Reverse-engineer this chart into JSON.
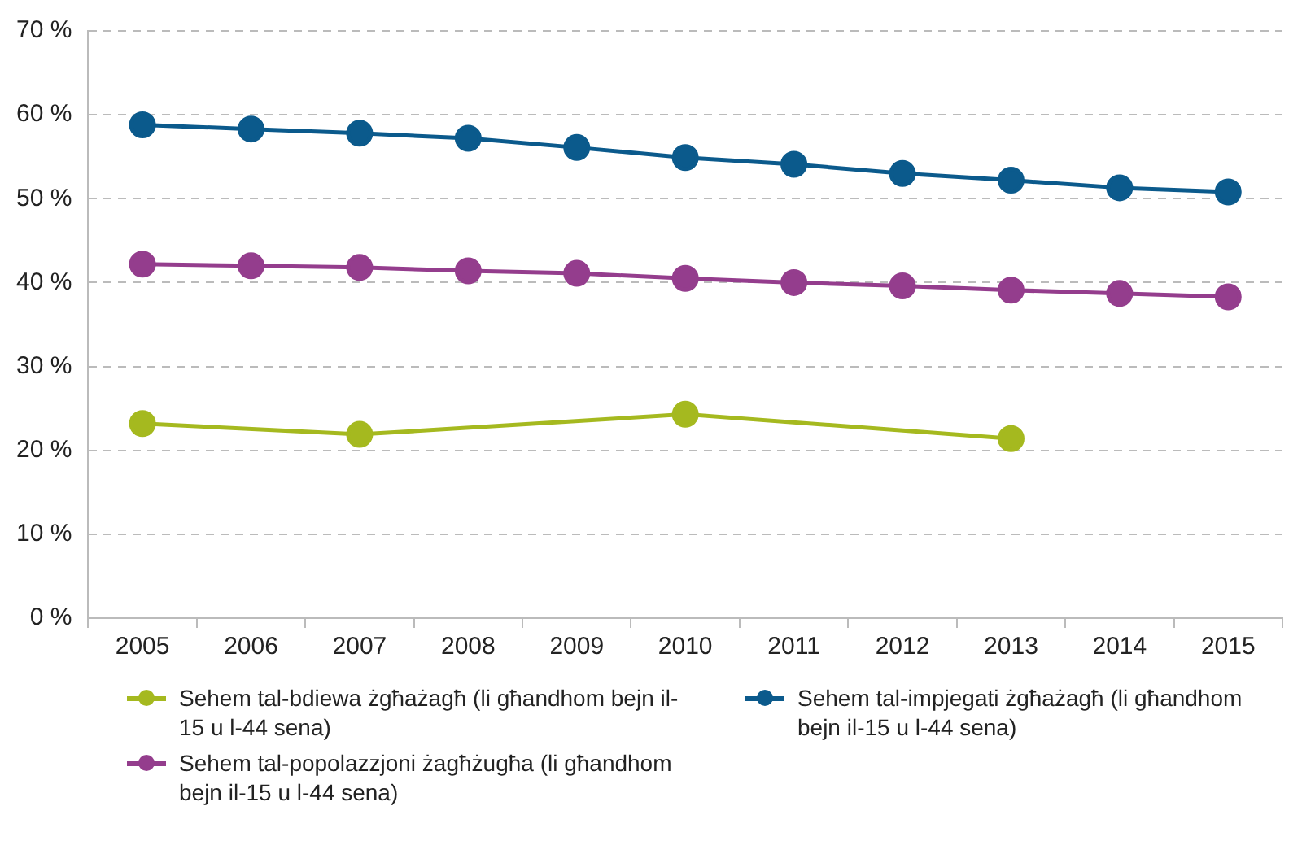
{
  "chart_data": {
    "type": "line",
    "categories": [
      "2005",
      "2006",
      "2007",
      "2008",
      "2009",
      "2010",
      "2011",
      "2012",
      "2013",
      "2014",
      "2015"
    ],
    "series": [
      {
        "name": "Sehem tal-bdiewa żgħażagħ (li għandhom bejn il-15 u l-44 sena)",
        "color": "#a5b91f",
        "values": [
          23.2,
          null,
          21.9,
          null,
          null,
          24.3,
          null,
          null,
          21.4,
          null,
          null
        ]
      },
      {
        "name": "Sehem tal-impjegati żgħażagħ (li għandhom bejn il-15 u l-44 sena)",
        "color": "#0b5a8c",
        "values": [
          58.8,
          58.3,
          57.8,
          57.2,
          56.1,
          54.9,
          54.1,
          53.0,
          52.2,
          51.3,
          50.8
        ]
      },
      {
        "name": "Sehem tal-popolazzjoni żagħżugħa (li għandhom bejn il-15 u l-44 sena)",
        "color": "#943d8d",
        "values": [
          42.2,
          42.0,
          41.8,
          41.4,
          41.1,
          40.5,
          40.0,
          39.6,
          39.1,
          38.7,
          38.3
        ]
      }
    ],
    "ylim": [
      0,
      70
    ],
    "yticks": [
      {
        "value": 0,
        "label": "0 %"
      },
      {
        "value": 10,
        "label": "10 %"
      },
      {
        "value": 20,
        "label": "20 %"
      },
      {
        "value": 30,
        "label": "30 %"
      },
      {
        "value": 40,
        "label": "40 %"
      },
      {
        "value": 50,
        "label": "50 %"
      },
      {
        "value": 60,
        "label": "60 %"
      },
      {
        "value": 70,
        "label": "70 %"
      }
    ],
    "grid": "y",
    "legend": "bottom",
    "marker": "circle",
    "line_style": "solid"
  }
}
